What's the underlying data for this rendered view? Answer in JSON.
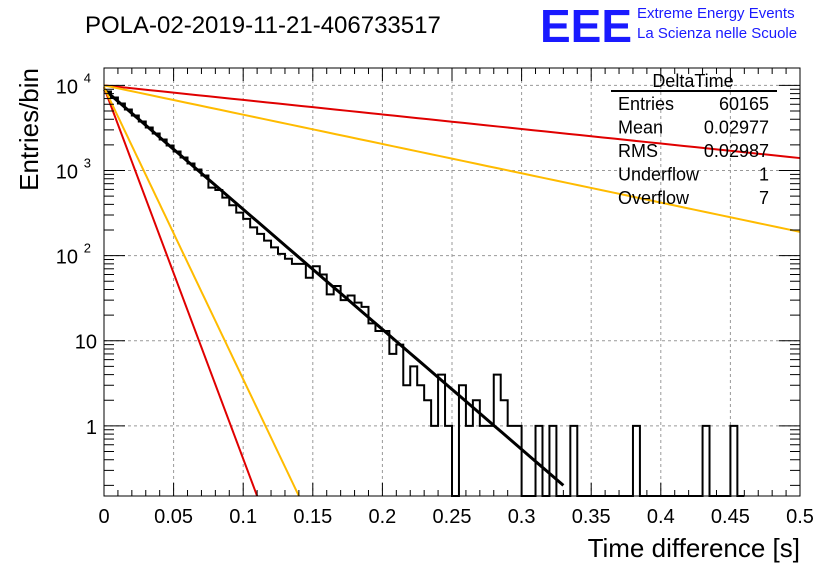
{
  "chart_data": {
    "type": "histogram",
    "title": "POLA-02-2019-11-21-406733517",
    "xlabel": "Time difference [s]",
    "ylabel": "Entries/bin",
    "xlim": [
      0,
      0.5
    ],
    "ylim": [
      0.15,
      16000
    ],
    "yscale": "log",
    "grid": true,
    "x_ticks": [
      "0",
      "0.05",
      "0.1",
      "0.15",
      "0.2",
      "0.25",
      "0.3",
      "0.35",
      "0.4",
      "0.45",
      "0.5"
    ],
    "y_ticks": [
      {
        "value": 1,
        "label": "1"
      },
      {
        "value": 10,
        "label": "10"
      },
      {
        "value": 100,
        "label": "10",
        "exp": "2"
      },
      {
        "value": 1000,
        "label": "10",
        "exp": "3"
      },
      {
        "value": 10000,
        "label": "10",
        "exp": "4"
      }
    ],
    "logo": {
      "text": "EEE",
      "line1": "Extreme Energy Events",
      "line2": "La Scienza nelle Scuole",
      "color": "#1a1aff"
    },
    "stats_box": {
      "title": "DeltaTime",
      "rows": [
        {
          "label": "Entries",
          "value": "60165"
        },
        {
          "label": "Mean",
          "value": "0.02977"
        },
        {
          "label": "RMS",
          "value": "0.02987"
        },
        {
          "label": "Underflow",
          "value": "1"
        },
        {
          "label": "Overflow",
          "value": "7"
        }
      ]
    },
    "histogram": {
      "bin_width": 0.005,
      "bin_starts": [
        0.075,
        0.08,
        0.085,
        0.09,
        0.095,
        0.1,
        0.105,
        0.11,
        0.115,
        0.12,
        0.125,
        0.13,
        0.135,
        0.14,
        0.145,
        0.15,
        0.155,
        0.16,
        0.165,
        0.17,
        0.175,
        0.18,
        0.185,
        0.19,
        0.195,
        0.2,
        0.205,
        0.21,
        0.215,
        0.22,
        0.225,
        0.23,
        0.235,
        0.24,
        0.245,
        0.25,
        0.255,
        0.26,
        0.265,
        0.27,
        0.275,
        0.28,
        0.285,
        0.29,
        0.295,
        0.3,
        0.305,
        0.31,
        0.315,
        0.32,
        0.325,
        0.33,
        0.335,
        0.34,
        0.345,
        0.35,
        0.355,
        0.36,
        0.365,
        0.37,
        0.375,
        0.38,
        0.385,
        0.39,
        0.395,
        0.4,
        0.405,
        0.41,
        0.415,
        0.42,
        0.425,
        0.43,
        0.435,
        0.44,
        0.445,
        0.45,
        0.455
      ],
      "counts": [
        630,
        590,
        480,
        390,
        320,
        270,
        215,
        180,
        150,
        125,
        105,
        92,
        80,
        80,
        55,
        75,
        60,
        35,
        44,
        30,
        34,
        28,
        25,
        16,
        13,
        13,
        7,
        9,
        3,
        5,
        3,
        2,
        1,
        4,
        1,
        0,
        3,
        1,
        2,
        1,
        1,
        4,
        2,
        1,
        1,
        0,
        0,
        1,
        0,
        1,
        0,
        0,
        1,
        0,
        0,
        0,
        0,
        0,
        0,
        0,
        0,
        1,
        0,
        0,
        0,
        0,
        0,
        0,
        0,
        0,
        0,
        1,
        0,
        0,
        0,
        1,
        0
      ]
    },
    "series": [
      {
        "name": "",
        "color": "#000000",
        "x": [
          0.0,
          0.33
        ],
        "y": [
          9000,
          0.2
        ]
      },
      {
        "name": "",
        "color": "#e00000",
        "x": [
          0.0,
          0.5
        ],
        "y": [
          10000,
          1400
        ]
      },
      {
        "name": "",
        "color": "#ffbb00",
        "x": [
          0.0,
          0.5
        ],
        "y": [
          10000,
          190
        ]
      },
      {
        "name": "",
        "color": "#e00000",
        "x": [
          0.0,
          0.11
        ],
        "y": [
          9500,
          0.15
        ]
      },
      {
        "name": "",
        "color": "#ffbb00",
        "x": [
          0.0,
          0.14
        ],
        "y": [
          9500,
          0.15
        ]
      }
    ]
  }
}
